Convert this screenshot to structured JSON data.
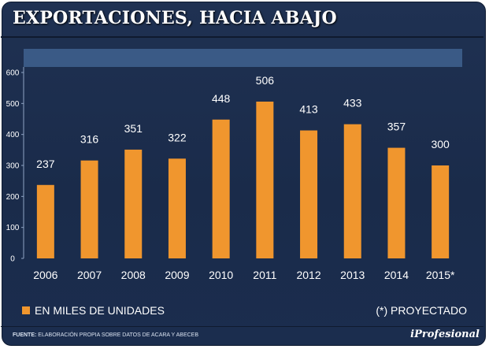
{
  "header": {
    "title": "EXPORTACIONES, HACIA ABAJO"
  },
  "legend": {
    "series_label": "EN MILES DE UNIDADES",
    "note": "(*) PROYECTADO"
  },
  "footer": {
    "source_label": "FUENTE:",
    "source_text": "ELABORACIÓN PROPIA SOBRE DATOS DE ACARA Y ABECEB",
    "brand": "iProfesional"
  },
  "colors": {
    "bar": "#f0962e",
    "background": "#1b2d4e",
    "band": "#3a5a86"
  },
  "chart_data": {
    "type": "bar",
    "title": "EXPORTACIONES, HACIA ABAJO",
    "xlabel": "",
    "ylabel": "EN MILES DE UNIDADES",
    "categories": [
      "2006",
      "2007",
      "2008",
      "2009",
      "2010",
      "2011",
      "2012",
      "2013",
      "2014",
      "2015*"
    ],
    "values": [
      237,
      316,
      351,
      322,
      448,
      506,
      413,
      433,
      357,
      300
    ],
    "value_labels": [
      "237",
      "316",
      "351",
      "322",
      "448",
      "506",
      "413",
      "433",
      "357",
      "300"
    ],
    "yticks": [
      "0",
      "100",
      "200",
      "300",
      "400",
      "500",
      "600"
    ],
    "ylim": [
      0,
      600
    ],
    "grid": false,
    "legend": "bottom-left"
  }
}
